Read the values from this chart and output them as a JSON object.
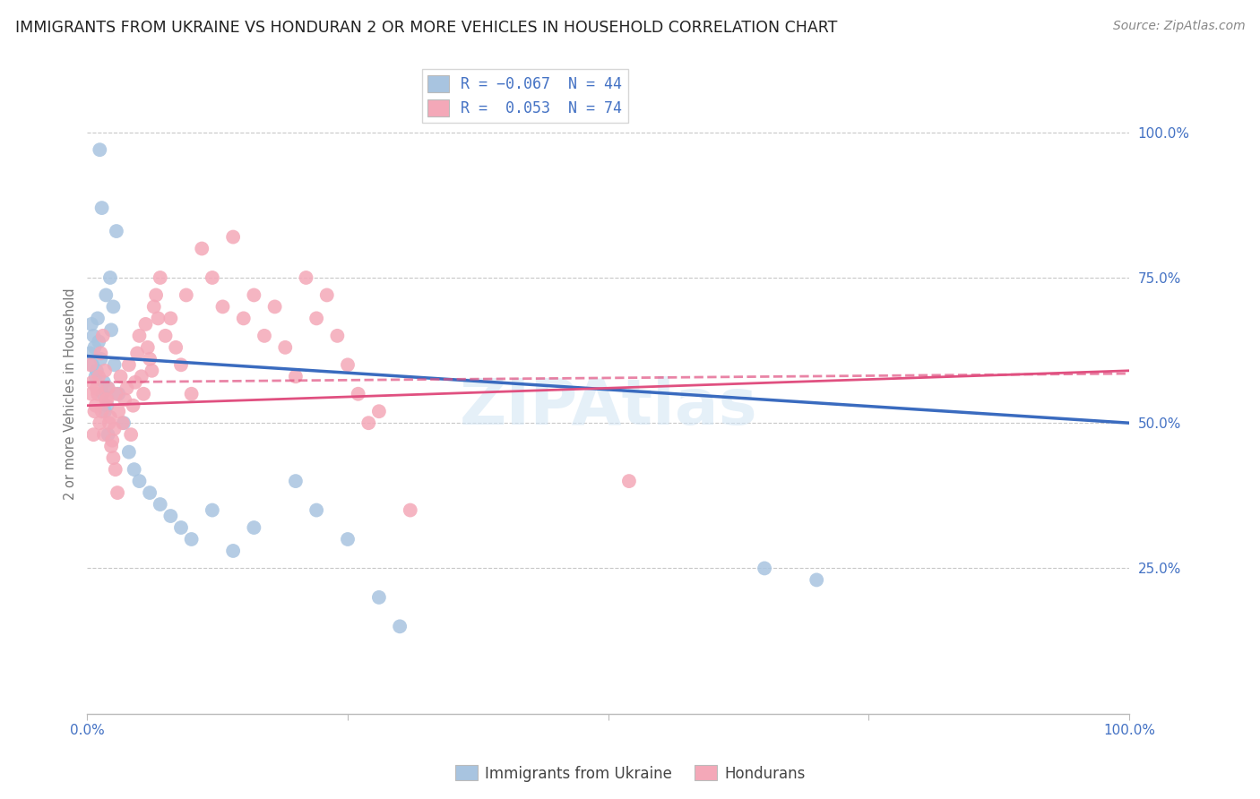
{
  "title": "IMMIGRANTS FROM UKRAINE VS HONDURAN 2 OR MORE VEHICLES IN HOUSEHOLD CORRELATION CHART",
  "source": "Source: ZipAtlas.com",
  "ylabel": "2 or more Vehicles in Household",
  "ytick_values": [
    0.25,
    0.5,
    0.75,
    1.0
  ],
  "xlim": [
    0.0,
    1.0
  ],
  "ylim": [
    0.0,
    1.1
  ],
  "ukraine_color": "#a8c4e0",
  "honduran_color": "#f4a8b8",
  "ukraine_line_color": "#3a6bbf",
  "honduran_line_color": "#e05080",
  "ukraine_R": -0.067,
  "ukraine_N": 44,
  "honduran_R": 0.053,
  "honduran_N": 74,
  "watermark": "ZIPAtlas",
  "background_color": "#ffffff",
  "grid_color": "#c8c8c8",
  "ukraine_x": [
    0.012,
    0.014,
    0.028,
    0.005,
    0.008,
    0.003,
    0.006,
    0.01,
    0.015,
    0.018,
    0.022,
    0.025,
    0.004,
    0.007,
    0.009,
    0.011,
    0.013,
    0.016,
    0.019,
    0.02,
    0.023,
    0.026,
    0.03,
    0.035,
    0.04,
    0.045,
    0.05,
    0.06,
    0.07,
    0.08,
    0.09,
    0.1,
    0.12,
    0.14,
    0.16,
    0.2,
    0.22,
    0.25,
    0.28,
    0.3,
    0.65,
    0.7,
    0.02,
    0.017
  ],
  "ukraine_y": [
    0.97,
    0.87,
    0.83,
    0.6,
    0.58,
    0.62,
    0.65,
    0.68,
    0.55,
    0.72,
    0.75,
    0.7,
    0.67,
    0.63,
    0.59,
    0.64,
    0.61,
    0.57,
    0.53,
    0.56,
    0.66,
    0.6,
    0.55,
    0.5,
    0.45,
    0.42,
    0.4,
    0.38,
    0.36,
    0.34,
    0.32,
    0.3,
    0.35,
    0.28,
    0.32,
    0.4,
    0.35,
    0.3,
    0.2,
    0.15,
    0.25,
    0.23,
    0.48,
    0.52
  ],
  "honduran_x": [
    0.005,
    0.008,
    0.01,
    0.012,
    0.014,
    0.016,
    0.018,
    0.02,
    0.022,
    0.024,
    0.026,
    0.028,
    0.03,
    0.032,
    0.034,
    0.036,
    0.038,
    0.04,
    0.042,
    0.044,
    0.046,
    0.048,
    0.05,
    0.052,
    0.054,
    0.056,
    0.058,
    0.06,
    0.062,
    0.064,
    0.066,
    0.068,
    0.07,
    0.075,
    0.08,
    0.085,
    0.09,
    0.095,
    0.1,
    0.11,
    0.12,
    0.13,
    0.14,
    0.15,
    0.16,
    0.17,
    0.18,
    0.19,
    0.2,
    0.21,
    0.22,
    0.23,
    0.24,
    0.25,
    0.26,
    0.27,
    0.28,
    0.003,
    0.004,
    0.006,
    0.007,
    0.009,
    0.011,
    0.013,
    0.015,
    0.017,
    0.019,
    0.021,
    0.023,
    0.025,
    0.027,
    0.029,
    0.52,
    0.31
  ],
  "honduran_y": [
    0.57,
    0.53,
    0.55,
    0.5,
    0.52,
    0.48,
    0.54,
    0.56,
    0.51,
    0.47,
    0.49,
    0.55,
    0.52,
    0.58,
    0.5,
    0.54,
    0.56,
    0.6,
    0.48,
    0.53,
    0.57,
    0.62,
    0.65,
    0.58,
    0.55,
    0.67,
    0.63,
    0.61,
    0.59,
    0.7,
    0.72,
    0.68,
    0.75,
    0.65,
    0.68,
    0.63,
    0.6,
    0.72,
    0.55,
    0.8,
    0.75,
    0.7,
    0.82,
    0.68,
    0.72,
    0.65,
    0.7,
    0.63,
    0.58,
    0.75,
    0.68,
    0.72,
    0.65,
    0.6,
    0.55,
    0.5,
    0.52,
    0.6,
    0.55,
    0.48,
    0.52,
    0.56,
    0.58,
    0.62,
    0.65,
    0.59,
    0.54,
    0.5,
    0.46,
    0.44,
    0.42,
    0.38,
    0.4,
    0.35
  ]
}
